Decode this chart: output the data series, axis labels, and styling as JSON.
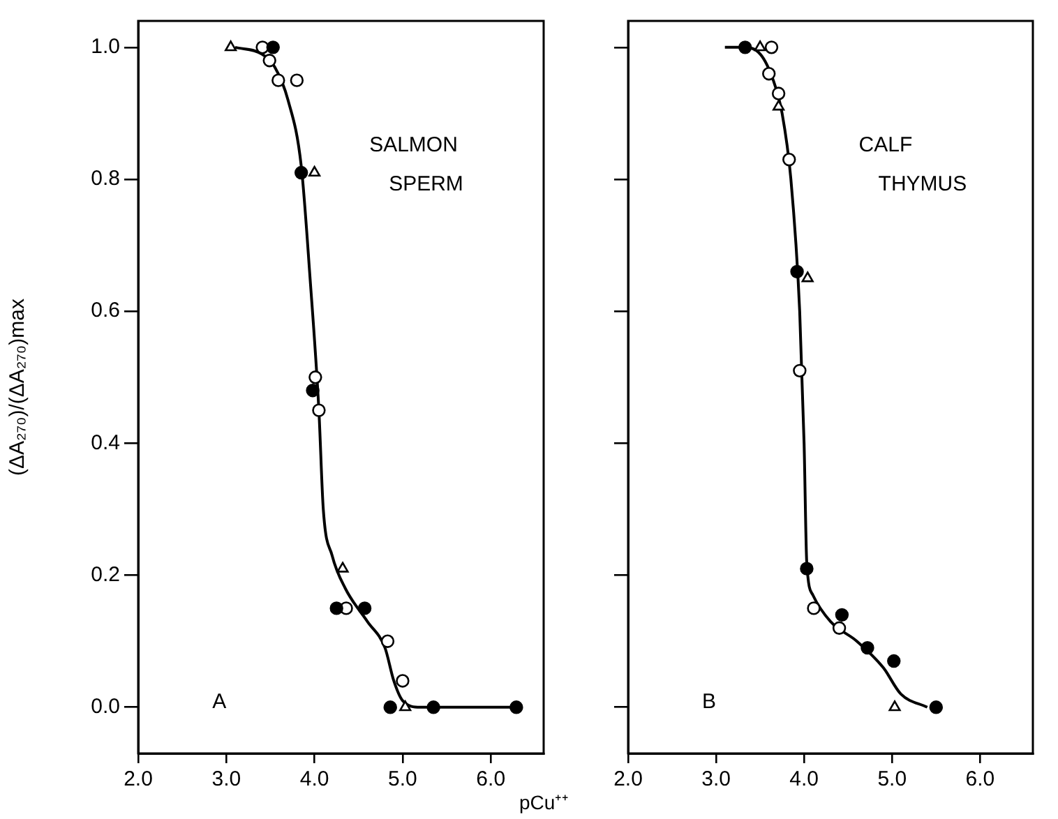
{
  "chart_data": [
    {
      "type": "scatter",
      "ylabel": "(ΔA₂₇₀)/(ΔA₂₇₀)max",
      "xlabel": "pCu⁺⁺",
      "xlim": [
        2,
        6.6
      ],
      "xticks": [
        {
          "value": 2,
          "label": "2.0"
        },
        {
          "value": 3,
          "label": "3.0"
        },
        {
          "value": 4,
          "label": "4.0"
        },
        {
          "value": 5,
          "label": "5.0"
        },
        {
          "value": 6,
          "label": "6.0"
        }
      ],
      "ylim": [
        -0.07,
        1.04
      ],
      "yticks": [
        {
          "value": 0,
          "label": "0.0"
        },
        {
          "value": 0.2,
          "label": "0.2"
        },
        {
          "value": 0.4,
          "label": "0.4"
        },
        {
          "value": 0.6,
          "label": "0.6"
        },
        {
          "value": 0.8,
          "label": "0.8"
        },
        {
          "value": 1,
          "label": "1.0"
        }
      ],
      "grid": false,
      "legend": false,
      "annotations": [
        "SALMON SPERM",
        "A"
      ],
      "series": [
        {
          "type": "scatter",
          "marker": "circle",
          "color": "#000000",
          "x": [
            3.53,
            3.85,
            3.98,
            4.25,
            4.57,
            4.86,
            5.35,
            6.29
          ],
          "values": [
            1.0,
            0.81,
            0.48,
            0.15,
            0.15,
            0.0,
            0.0,
            0.0
          ]
        },
        {
          "type": "scatter",
          "marker": "circle",
          "color": "#ffffff",
          "x": [
            3.41,
            3.49,
            3.59,
            3.8,
            4.01,
            4.05,
            4.36,
            4.83,
            5.0
          ],
          "values": [
            1.0,
            0.98,
            0.95,
            0.95,
            0.5,
            0.45,
            0.15,
            0.1,
            0.04
          ]
        },
        {
          "type": "scatter",
          "marker": "triangle",
          "color": "#ffffff",
          "x": [
            3.05,
            4.0,
            4.32,
            5.03
          ],
          "values": [
            1.0,
            0.81,
            0.21,
            0.0
          ]
        },
        {
          "type": "line",
          "marker": "none",
          "color": "#000000",
          "x": [
            3.1,
            3.4,
            3.55,
            3.7,
            3.85,
            3.95,
            4.05,
            4.1,
            4.2,
            4.35,
            4.6,
            4.8,
            4.9,
            5.0,
            5.2,
            6.3
          ],
          "values": [
            1.0,
            0.99,
            0.97,
            0.92,
            0.82,
            0.65,
            0.45,
            0.3,
            0.23,
            0.18,
            0.13,
            0.09,
            0.04,
            0.01,
            0.0,
            0.0
          ]
        }
      ]
    },
    {
      "type": "scatter",
      "tick_labels": "x",
      "xlim": [
        2,
        6.6
      ],
      "xticks": [
        {
          "value": 2,
          "label": "2.0"
        },
        {
          "value": 3,
          "label": "3.0"
        },
        {
          "value": 4,
          "label": "4.0"
        },
        {
          "value": 5,
          "label": "5.0"
        },
        {
          "value": 6,
          "label": "6.0"
        }
      ],
      "ylim": [
        -0.07,
        1.04
      ],
      "yticks": [
        0,
        0.2,
        0.4,
        0.6,
        0.8,
        1
      ],
      "grid": false,
      "legend": false,
      "annotations": [
        "CALF THYMUS",
        "B"
      ],
      "series": [
        {
          "type": "scatter",
          "marker": "circle",
          "color": "#000000",
          "x": [
            3.33,
            3.92,
            4.03,
            4.43,
            4.72,
            5.02,
            5.5
          ],
          "values": [
            1.0,
            0.66,
            0.21,
            0.14,
            0.09,
            0.07,
            0.0
          ]
        },
        {
          "type": "scatter",
          "marker": "circle",
          "color": "#ffffff",
          "x": [
            3.63,
            3.6,
            3.71,
            3.83,
            3.95,
            4.11,
            4.4
          ],
          "values": [
            1.0,
            0.96,
            0.93,
            0.83,
            0.51,
            0.15,
            0.12
          ]
        },
        {
          "type": "scatter",
          "marker": "triangle",
          "color": "#ffffff",
          "x": [
            3.5,
            3.71,
            4.04,
            5.03
          ],
          "values": [
            1.0,
            0.91,
            0.65,
            0.0
          ]
        },
        {
          "type": "line",
          "marker": "none",
          "color": "#000000",
          "x": [
            3.1,
            3.3,
            3.5,
            3.65,
            3.75,
            3.85,
            3.95,
            4.0,
            4.03,
            4.1,
            4.3,
            4.6,
            4.9,
            5.1,
            5.4
          ],
          "values": [
            1.0,
            1.0,
            0.99,
            0.95,
            0.9,
            0.8,
            0.6,
            0.4,
            0.22,
            0.17,
            0.13,
            0.1,
            0.06,
            0.02,
            0.0
          ]
        }
      ]
    }
  ]
}
